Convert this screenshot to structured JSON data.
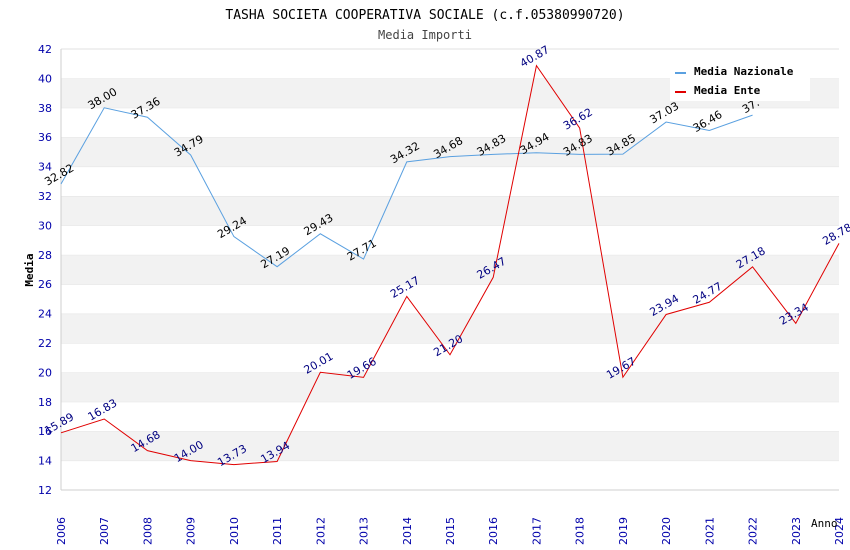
{
  "chart_data": {
    "type": "line",
    "title": "TASHA SOCIETA COOPERATIVA SOCIALE (c.f.05380990720)",
    "subtitle": "Media Importi",
    "xlabel": "Anno",
    "ylabel": "Media",
    "ylim": [
      12,
      42
    ],
    "yticks": [
      "12",
      "14",
      "16",
      "18",
      "20",
      "22",
      "24",
      "26",
      "28",
      "30",
      "32",
      "34",
      "36",
      "38",
      "40",
      "42"
    ],
    "grid": "horizontal alternating bands",
    "legend_position": "top-right",
    "x": [
      "2006",
      "2007",
      "2008",
      "2009",
      "2010",
      "2011",
      "2012",
      "2013",
      "2014",
      "2015",
      "2016",
      "2017",
      "2018",
      "2019",
      "2020",
      "2021",
      "2022",
      "2023",
      "2024"
    ],
    "series": [
      {
        "name": "Media Nazionale",
        "color": "#5aa0e0",
        "label_color": "#000000",
        "values": [
          32.82,
          38.0,
          37.36,
          34.79,
          29.24,
          27.19,
          29.43,
          27.71,
          34.32,
          34.68,
          34.83,
          34.94,
          34.83,
          34.85,
          37.03,
          36.46,
          37.5,
          null,
          null
        ],
        "labels": [
          "32.82",
          "38.00",
          "37.36",
          "34.79",
          "29.24",
          "27.19",
          "29.43",
          "27.71",
          "34.32",
          "34.68",
          "34.83",
          "34.94",
          "34.83",
          "34.85",
          "37.03",
          "36.46",
          "37.",
          "",
          ""
        ]
      },
      {
        "name": "Media Ente",
        "color": "#e00000",
        "label_color": "#000080",
        "values": [
          15.89,
          16.83,
          14.68,
          14.0,
          13.73,
          13.94,
          20.01,
          19.66,
          25.17,
          21.2,
          26.47,
          40.87,
          36.62,
          19.67,
          23.94,
          24.77,
          27.18,
          23.34,
          28.78
        ],
        "labels": [
          "15.89",
          "16.83",
          "14.68",
          "14.00",
          "13.73",
          "13.94",
          "20.01",
          "19.66",
          "25.17",
          "21.20",
          "26.47",
          "40.87",
          "36.62",
          "19.67",
          "23.94",
          "24.77",
          "27.18",
          "23.34",
          "28.78"
        ]
      }
    ]
  }
}
